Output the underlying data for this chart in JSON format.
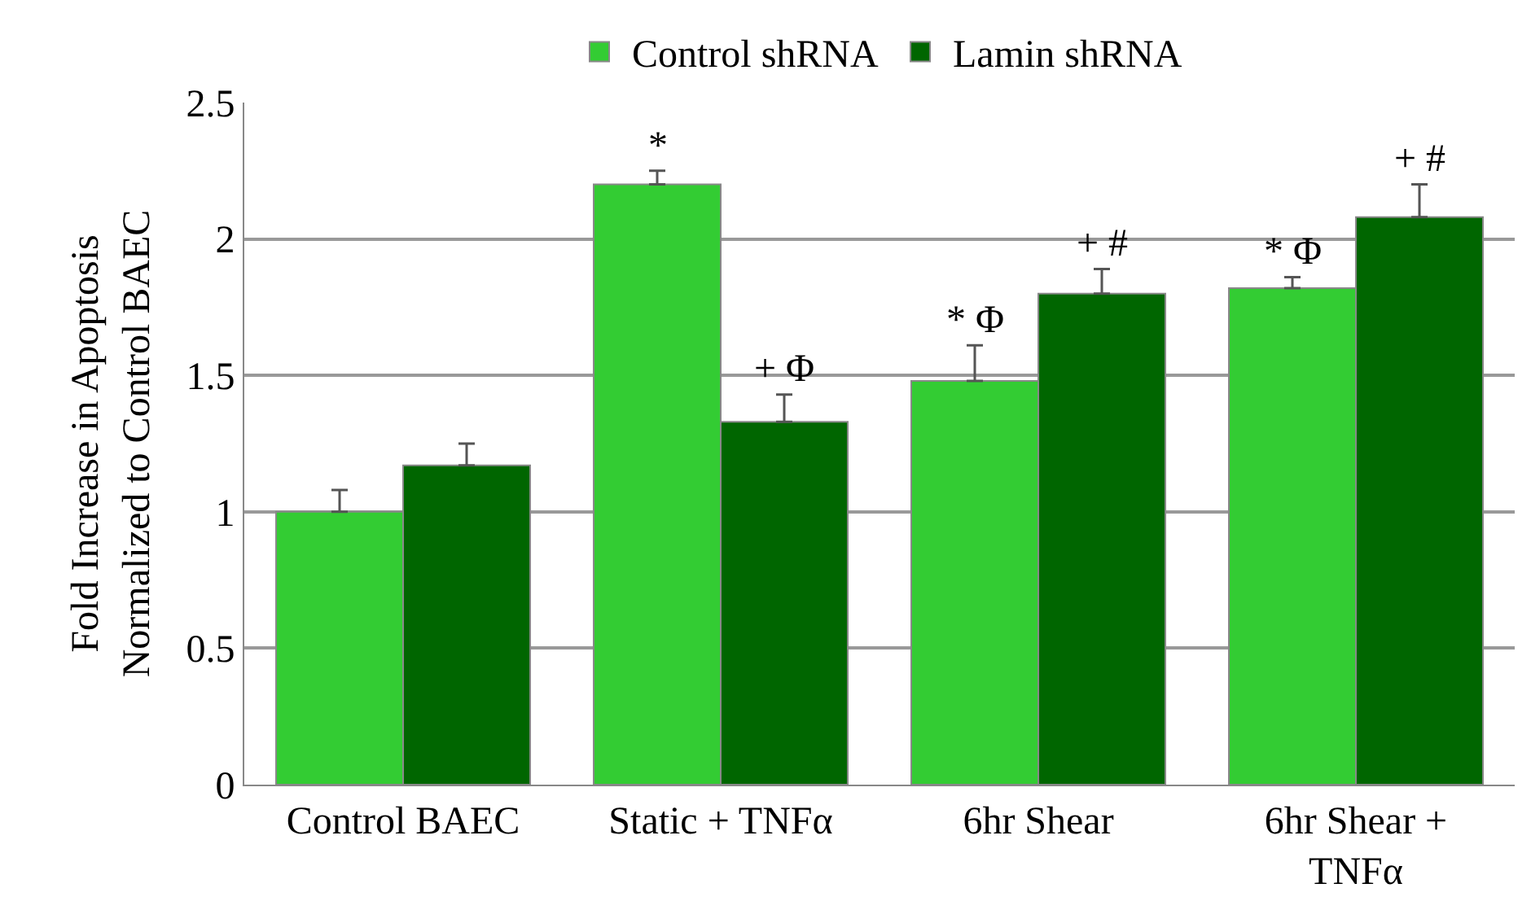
{
  "chart_data": {
    "type": "bar",
    "ylabel": "Fold Increase in Apoptosis\nNormalized to Control BAEC",
    "categories": [
      "Control BAEC",
      "Static + TNFα",
      "6hr Shear",
      "6hr Shear + TNFα"
    ],
    "series": [
      {
        "name": "Control shRNA",
        "color": "#33cc33",
        "values": [
          1.0,
          2.2,
          1.48,
          1.82
        ],
        "errors": [
          0.08,
          0.05,
          0.13,
          0.04
        ]
      },
      {
        "name": "Lamin shRNA",
        "color": "#006600",
        "values": [
          1.17,
          1.33,
          1.8,
          2.08
        ],
        "errors": [
          0.08,
          0.1,
          0.09,
          0.12
        ]
      }
    ],
    "annotations": [
      {
        "text": "*",
        "x": "Static + TNFα",
        "y": 2.2
      },
      {
        "text": "+ Φ",
        "x": "Static + TNFα",
        "y": 1.33
      },
      {
        "text": "* Φ",
        "x": "6hr Shear",
        "y": 1.48
      },
      {
        "text": "+ #",
        "x": "6hr Shear",
        "y": 1.8
      },
      {
        "text": "* Φ",
        "x": "6hr Shear + TNFα",
        "y": 1.82
      },
      {
        "text": "+ #",
        "x": "6hr Shear + TNFα",
        "y": 2.08
      }
    ],
    "ylim": [
      0,
      2.5
    ],
    "yticks": [
      0,
      0.5,
      1,
      1.5,
      2,
      2.5
    ],
    "grid": "y",
    "legend": "top"
  }
}
